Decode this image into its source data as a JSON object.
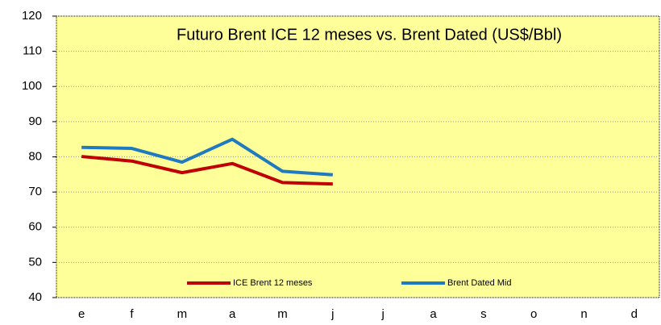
{
  "chart_data": {
    "type": "line",
    "title": "Futuro Brent ICE 12 meses vs. Brent Dated (US$/Bbl)",
    "categories": [
      "e",
      "f",
      "m",
      "a",
      "m",
      "j",
      "j",
      "a",
      "s",
      "o",
      "n",
      "d"
    ],
    "series": [
      {
        "name": "ICE Brent 12 meses",
        "color": "#c00000",
        "values": [
          80.1,
          78.8,
          75.5,
          78.1,
          72.7,
          72.3,
          null,
          null,
          null,
          null,
          null,
          null
        ]
      },
      {
        "name": "Brent Dated Mid",
        "color": "#1f7ac0",
        "values": [
          82.7,
          82.4,
          78.5,
          85.0,
          75.9,
          74.9,
          null,
          null,
          null,
          null,
          null,
          null
        ]
      }
    ],
    "ylim": [
      40,
      120
    ],
    "yticks": [
      40,
      50,
      60,
      70,
      80,
      90,
      100,
      110,
      120
    ],
    "grid": true,
    "legend": "bottom",
    "background": "#ffff99"
  }
}
